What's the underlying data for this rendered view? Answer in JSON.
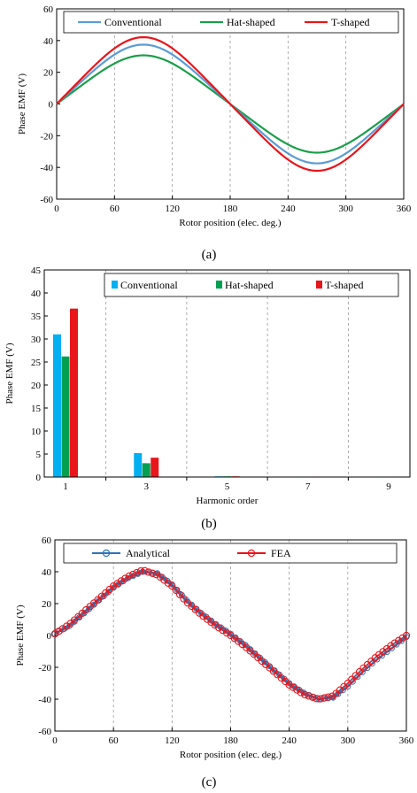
{
  "chart_data": [
    {
      "type": "line",
      "caption": "(a)",
      "xlabel": "Rotor position (elec. deg.)",
      "ylabel": "Phase EMF (V)",
      "xlim": [
        0,
        360
      ],
      "ylim": [
        -60,
        60
      ],
      "xticks": [
        0,
        60,
        120,
        180,
        240,
        300,
        360
      ],
      "yticks": [
        -60,
        -40,
        -20,
        0,
        20,
        40,
        60
      ],
      "grid": "vertical dashed",
      "legend_position": "top",
      "series": [
        {
          "name": "Conventional",
          "color": "#5B9BD5",
          "amplitude": 36
        },
        {
          "name": "Hat-shaped",
          "color": "#1A9E4A",
          "amplitude": 29.5
        },
        {
          "name": "T-shaped",
          "color": "#E8151B",
          "amplitude": 40.5
        }
      ],
      "x": [
        0,
        15,
        30,
        45,
        60,
        75,
        90,
        105,
        120,
        135,
        150,
        165,
        180,
        195,
        210,
        225,
        240,
        255,
        270,
        285,
        300,
        315,
        330,
        345,
        360
      ]
    },
    {
      "type": "bar",
      "caption": "(b)",
      "xlabel": "Harmonic order",
      "ylabel": "Phase EMF (V)",
      "categories": [
        "1",
        "3",
        "5",
        "7",
        "9"
      ],
      "ylim": [
        0,
        45
      ],
      "yticks": [
        0,
        5,
        10,
        15,
        20,
        25,
        30,
        35,
        40,
        45
      ],
      "grid": "vertical dashed",
      "legend_position": "top",
      "series": [
        {
          "name": "Conventional",
          "color": "#00B0F0",
          "values": [
            31.0,
            5.2,
            0.15,
            0.1,
            0.1
          ]
        },
        {
          "name": "Hat-shaped",
          "color": "#00A050",
          "values": [
            26.2,
            3.0,
            0.15,
            0.1,
            0.1
          ]
        },
        {
          "name": "T-shaped",
          "color": "#E8151B",
          "values": [
            36.6,
            4.2,
            0.15,
            0.1,
            0.1
          ]
        }
      ]
    },
    {
      "type": "line",
      "caption": "(c)",
      "xlabel": "Rotor position (elec. deg.)",
      "ylabel": "Phase EMF (V)",
      "xlim": [
        0,
        360
      ],
      "ylim": [
        -60,
        60
      ],
      "xticks": [
        0,
        60,
        120,
        180,
        240,
        300,
        360
      ],
      "yticks": [
        -60,
        -40,
        -20,
        0,
        20,
        40,
        60
      ],
      "grid": "vertical dashed",
      "legend_position": "top",
      "series": [
        {
          "name": "Analytical",
          "color": "#2E75B6",
          "marker": "circle"
        },
        {
          "name": "FEA",
          "color": "#E8151B",
          "marker": "circle"
        }
      ],
      "x": [
        0,
        15,
        30,
        45,
        60,
        75,
        90,
        105,
        120,
        135,
        150,
        165,
        180,
        195,
        210,
        225,
        240,
        255,
        270,
        285,
        300,
        315,
        330,
        345,
        360
      ],
      "analytical_y": [
        1,
        6,
        14,
        22,
        30,
        36,
        40,
        39,
        32,
        22,
        14,
        7,
        1,
        -6,
        -14,
        -22,
        -30,
        -36,
        -40,
        -39,
        -32,
        -23,
        -15,
        -8,
        -1
      ],
      "fea_y": [
        1,
        7,
        15,
        23,
        31,
        37,
        41,
        38,
        31,
        21,
        13,
        6,
        0,
        -7,
        -15,
        -23,
        -31,
        -37,
        -40,
        -38,
        -30,
        -21,
        -13,
        -6,
        0
      ]
    }
  ]
}
